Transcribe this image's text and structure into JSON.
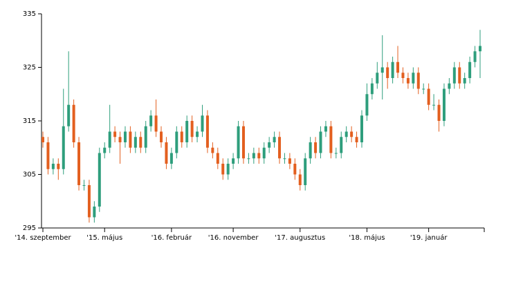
{
  "chart_data": {
    "type": "candlestick",
    "categories": [
      "'14. szeptember",
      null,
      null,
      null,
      null,
      null,
      null,
      null,
      null,
      null,
      null,
      null,
      "'15. május",
      null,
      null,
      null,
      null,
      null,
      null,
      null,
      null,
      null,
      null,
      null,
      null,
      "'16. február",
      null,
      null,
      null,
      null,
      null,
      null,
      null,
      null,
      null,
      null,
      null,
      "'16. november",
      null,
      null,
      null,
      null,
      null,
      null,
      null,
      null,
      null,
      null,
      null,
      null,
      "'17. augusztus",
      null,
      null,
      null,
      null,
      null,
      null,
      null,
      null,
      null,
      null,
      null,
      null,
      "'18. május",
      null,
      null,
      null,
      null,
      null,
      null,
      null,
      null,
      null,
      null,
      null,
      "'19. január",
      null,
      null,
      null,
      null,
      null,
      null,
      null,
      null,
      null,
      null
    ],
    "open": [
      312,
      311,
      306,
      307,
      306,
      314,
      318,
      311,
      303,
      303,
      297,
      299,
      309,
      310,
      313,
      312,
      311,
      313,
      310,
      312,
      310,
      314,
      316,
      313,
      311,
      307,
      309,
      313,
      311,
      315,
      312,
      313,
      316,
      310,
      309,
      307,
      305,
      307,
      308,
      314,
      308,
      308,
      309,
      308,
      310,
      311,
      312,
      308,
      308,
      307,
      305,
      303,
      308,
      311,
      309,
      313,
      314,
      309,
      309,
      312,
      313,
      312,
      311,
      316,
      320,
      322,
      324,
      325,
      323,
      326,
      324,
      323,
      322,
      324,
      321,
      321,
      318,
      318,
      315,
      321,
      322,
      325,
      322,
      323,
      326,
      328
    ],
    "high": [
      313,
      312,
      308,
      308,
      321,
      328,
      319,
      312,
      304,
      304,
      300,
      310,
      311,
      318,
      314,
      313,
      314,
      314,
      313,
      313,
      315,
      317,
      319,
      314,
      312,
      310,
      314,
      314,
      316,
      316,
      314,
      318,
      317,
      311,
      310,
      308,
      308,
      309,
      315,
      315,
      309,
      310,
      310,
      311,
      312,
      313,
      313,
      309,
      309,
      308,
      306,
      309,
      312,
      312,
      314,
      315,
      315,
      310,
      313,
      314,
      314,
      313,
      317,
      322,
      323,
      326,
      331,
      326,
      327,
      329,
      325,
      324,
      325,
      325,
      322,
      322,
      320,
      319,
      322,
      323,
      326,
      326,
      324,
      327,
      329,
      332
    ],
    "low": [
      310,
      305,
      305,
      304,
      305,
      313,
      310,
      302,
      302,
      296,
      296,
      298,
      308,
      309,
      311,
      307,
      310,
      309,
      309,
      309,
      309,
      313,
      312,
      310,
      306,
      306,
      308,
      310,
      310,
      311,
      311,
      312,
      309,
      308,
      306,
      304,
      304,
      306,
      307,
      307,
      307,
      307,
      307,
      307,
      309,
      310,
      307,
      307,
      306,
      304,
      302,
      302,
      307,
      308,
      308,
      312,
      308,
      308,
      308,
      311,
      311,
      310,
      310,
      315,
      319,
      321,
      319,
      321,
      322,
      323,
      322,
      321,
      321,
      320,
      320,
      317,
      317,
      313,
      314,
      320,
      321,
      321,
      321,
      322,
      325,
      323
    ],
    "close": [
      311,
      306,
      307,
      306,
      314,
      318,
      311,
      303,
      303,
      297,
      299,
      309,
      310,
      313,
      312,
      311,
      313,
      310,
      312,
      310,
      314,
      316,
      313,
      311,
      307,
      309,
      313,
      311,
      315,
      312,
      313,
      316,
      310,
      309,
      307,
      305,
      307,
      308,
      314,
      308,
      308,
      309,
      308,
      310,
      311,
      312,
      308,
      308,
      307,
      305,
      303,
      308,
      311,
      309,
      313,
      314,
      309,
      309,
      312,
      313,
      312,
      311,
      316,
      320,
      322,
      324,
      325,
      323,
      326,
      324,
      323,
      322,
      324,
      321,
      321,
      318,
      318,
      315,
      321,
      322,
      325,
      322,
      323,
      326,
      328,
      329
    ],
    "up_color": "#2e9e7c",
    "down_color": "#e35f1f",
    "ylim": [
      295,
      335
    ],
    "yticks": [
      295,
      305,
      315,
      325,
      335
    ]
  }
}
